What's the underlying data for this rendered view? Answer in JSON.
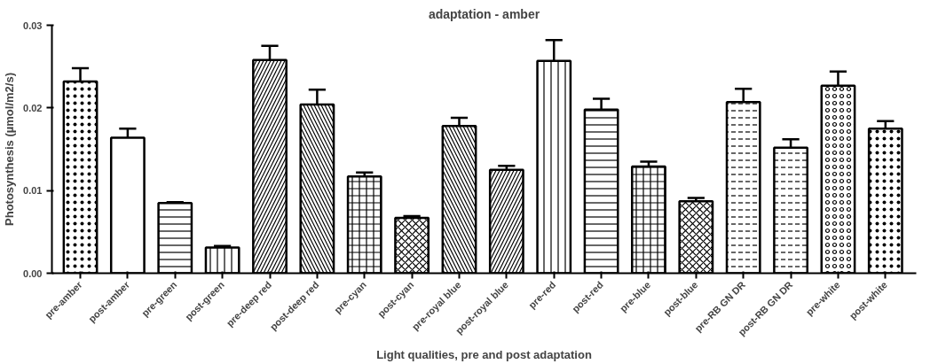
{
  "chart_data": {
    "type": "bar",
    "title": "adaptation - amber",
    "xlabel": "Light qualities, pre and post adaptation",
    "ylabel": "Photosynthesis (µmol/m2/s)",
    "categories": [
      "pre-amber",
      "post-amber",
      "pre-green",
      "post-green",
      "pre-deep red",
      "post-deep red",
      "pre-cyan",
      "post-cyan",
      "pre-royal blue",
      "post-royal blue",
      "pre-red",
      "post-red",
      "pre-blue",
      "post-blue",
      "pre-RB GN DR",
      "post-RB GN DR",
      "pre-white",
      "post-white"
    ],
    "values": [
      0.0232,
      0.0164,
      0.0085,
      0.0031,
      0.0258,
      0.0204,
      0.0117,
      0.0067,
      0.0178,
      0.0125,
      0.0257,
      0.0198,
      0.0129,
      0.0087,
      0.0207,
      0.0152,
      0.0227,
      0.0175
    ],
    "errors": [
      0.0016,
      0.0011,
      0.0001,
      0.0002,
      0.0017,
      0.0018,
      0.0005,
      0.0002,
      0.001,
      0.0005,
      0.0025,
      0.0013,
      0.0006,
      0.0004,
      0.0016,
      0.001,
      0.0017,
      0.0009
    ],
    "color": "#ffffff",
    "ylim": [
      0,
      0.03
    ],
    "yticks": [
      {
        "value": 0,
        "label": "0.00"
      },
      {
        "value": 0.01,
        "label": "0.01"
      },
      {
        "value": 0.02,
        "label": "0.02"
      },
      {
        "value": 0.03,
        "label": "0.03"
      }
    ],
    "grid": false
  }
}
